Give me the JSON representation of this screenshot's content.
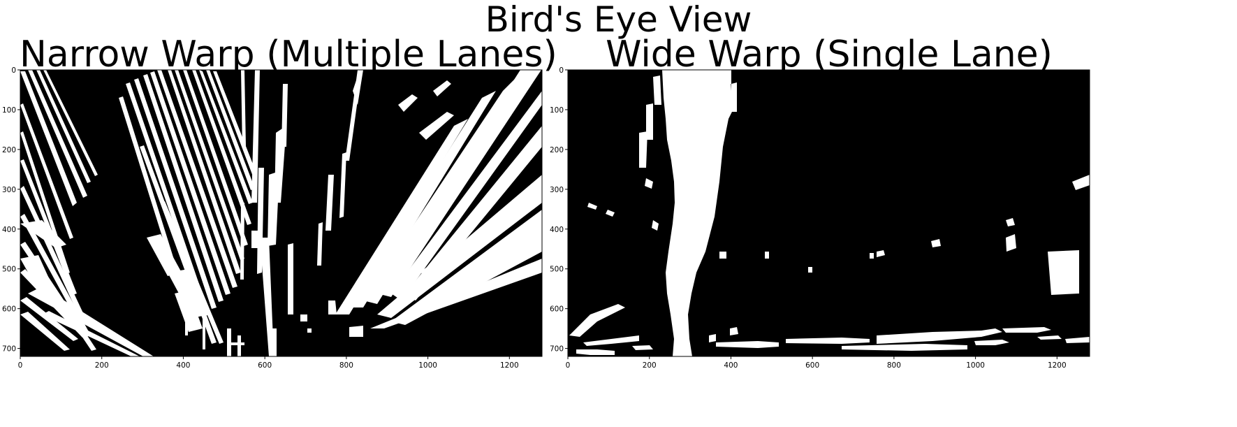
{
  "figure": {
    "title": "Bird's Eye View",
    "colors": {
      "background": "#000000",
      "foreground": "#ffffff",
      "frame": "#000000"
    }
  },
  "panels": [
    {
      "title": "Narrow Warp (Multiple Lanes)",
      "xlim": [
        0,
        1280
      ],
      "ylim": [
        720,
        0
      ],
      "xticks": [
        0,
        200,
        400,
        600,
        800,
        1000,
        1200
      ],
      "yticks": [
        0,
        100,
        200,
        300,
        400,
        500,
        600,
        700
      ]
    },
    {
      "title": "Wide Warp (Single Lane)",
      "xlim": [
        0,
        1280
      ],
      "ylim": [
        720,
        0
      ],
      "xticks": [
        0,
        200,
        400,
        600,
        800,
        1000,
        1200
      ],
      "yticks": [
        0,
        100,
        200,
        300,
        400,
        500,
        600,
        700
      ]
    }
  ]
}
